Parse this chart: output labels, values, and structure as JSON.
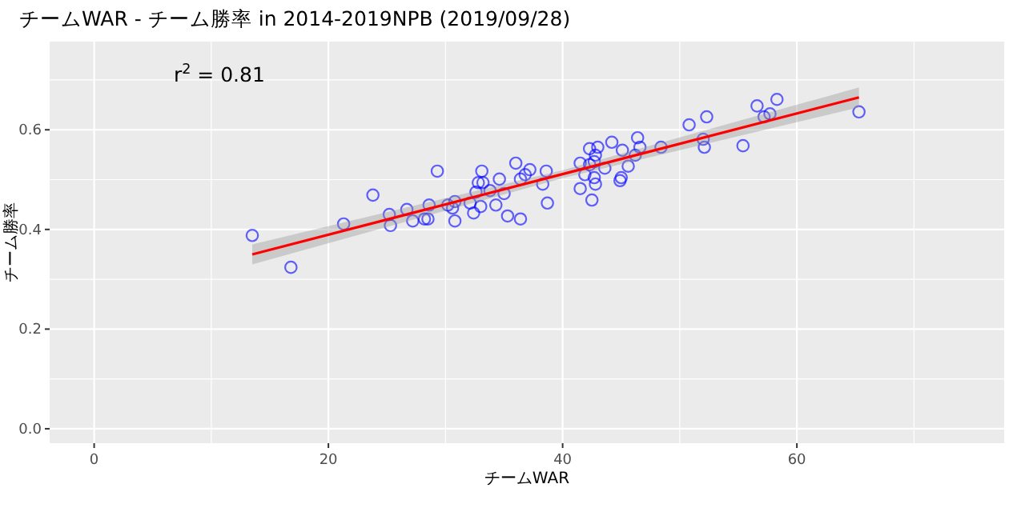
{
  "chart_data": {
    "type": "scatter",
    "title": "チームWAR - チーム勝率 in 2014-2019NPB (2019/09/28)",
    "xlabel": "チームWAR",
    "ylabel": "チーム勝率",
    "annotations": [
      "r$^{2}$ = 0.81"
    ],
    "xlim": [
      -3.8,
      77.7
    ],
    "ylim": [
      -0.029,
      0.777
    ],
    "xticks": [
      0,
      {
        "value": 10,
        "label": null
      },
      20,
      {
        "value": 30,
        "label": null
      },
      40,
      {
        "value": 50,
        "label": null
      },
      60,
      {
        "value": 70,
        "label": null
      }
    ],
    "yticks": [
      "0.0",
      {
        "value": 0.1,
        "label": null
      },
      0.2,
      {
        "value": 0.3,
        "label": null
      },
      0.4,
      {
        "value": 0.5,
        "label": null
      },
      0.6,
      {
        "value": 0.7,
        "label": null
      }
    ],
    "grid": true,
    "series": [
      {
        "marker": "circle",
        "color": "#0000ff",
        "x": [
          13.5,
          16.8,
          21.3,
          23.8,
          25.2,
          25.3,
          26.7,
          27.2,
          28.2,
          28.5,
          28.6,
          29.3,
          30.2,
          30.6,
          30.8,
          30.8,
          32.1,
          32.4,
          32.6,
          32.8,
          33.0,
          33.1,
          33.8,
          34.3,
          34.6,
          35.0,
          35.3,
          33.2,
          36.0,
          36.4,
          36.4,
          36.8,
          37.2,
          38.3,
          38.6,
          38.7,
          41.5,
          41.5,
          41.9,
          42.3,
          42.3,
          42.7,
          42.7,
          42.8,
          42.5,
          43.0,
          42.8,
          43.6,
          44.2,
          44.9,
          45.0,
          45.1,
          45.6,
          46.4,
          46.6,
          46.2,
          48.4,
          50.8,
          52.0,
          52.1,
          52.3,
          55.4,
          56.6,
          57.2,
          57.7,
          58.3,
          65.3
        ],
        "values": [
          0.388,
          0.324,
          0.411,
          0.469,
          0.43,
          0.408,
          0.44,
          0.417,
          0.421,
          0.421,
          0.449,
          0.517,
          0.449,
          0.443,
          0.456,
          0.417,
          0.453,
          0.433,
          0.475,
          0.494,
          0.446,
          0.517,
          0.478,
          0.449,
          0.501,
          0.472,
          0.427,
          0.494,
          0.533,
          0.421,
          0.501,
          0.51,
          0.52,
          0.491,
          0.517,
          0.453,
          0.533,
          0.482,
          0.51,
          0.562,
          0.53,
          0.536,
          0.504,
          0.491,
          0.459,
          0.565,
          0.549,
          0.523,
          0.575,
          0.498,
          0.504,
          0.559,
          0.527,
          0.584,
          0.565,
          0.549,
          0.565,
          0.61,
          0.581,
          0.565,
          0.626,
          0.568,
          0.648,
          0.626,
          0.632,
          0.661,
          0.636
        ]
      },
      {
        "type": "line",
        "color": "#ff0000",
        "x": [
          13.5,
          40,
          65.3
        ],
        "values": [
          0.35,
          0.511,
          0.665
        ],
        "lower": [
          0.33,
          0.503,
          0.645
        ],
        "upper": [
          0.37,
          0.519,
          0.685
        ]
      }
    ]
  }
}
